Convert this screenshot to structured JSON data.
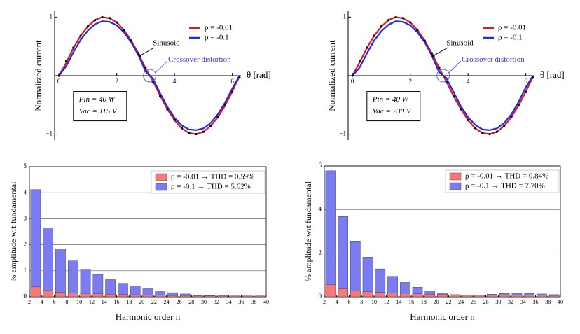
{
  "chart_data": [
    {
      "type": "line",
      "ylabel": "Normalized current",
      "xlabel": "θ [rad]",
      "x": [
        0,
        0.25,
        0.5,
        0.75,
        1,
        1.25,
        1.5,
        1.75,
        2,
        2.25,
        2.5,
        2.75,
        3,
        3.25,
        3.5,
        3.75,
        4,
        4.25,
        4.5,
        4.75,
        5,
        5.25,
        5.5,
        5.75,
        6,
        6.25
      ],
      "series": [
        {
          "name": "ρ = -0.01",
          "color": "#e8141c",
          "values": [
            0,
            0.22,
            0.47,
            0.68,
            0.84,
            0.95,
            1.0,
            0.98,
            0.91,
            0.78,
            0.6,
            0.38,
            0.12,
            -0.09,
            -0.34,
            -0.57,
            -0.76,
            -0.9,
            -0.98,
            -1.0,
            -0.96,
            -0.86,
            -0.71,
            -0.51,
            -0.27,
            -0.01
          ]
        },
        {
          "name": "ρ = -0.1",
          "color": "#1a2ee0",
          "values": [
            0,
            0.16,
            0.4,
            0.61,
            0.77,
            0.88,
            0.93,
            0.92,
            0.86,
            0.74,
            0.57,
            0.35,
            0.07,
            -0.05,
            -0.3,
            -0.53,
            -0.72,
            -0.85,
            -0.92,
            -0.93,
            -0.9,
            -0.81,
            -0.66,
            -0.46,
            -0.22,
            0
          ]
        }
      ],
      "sinusoid": {
        "color": "#000000",
        "values": [
          0,
          0.247,
          0.479,
          0.682,
          0.841,
          0.949,
          0.997,
          0.984,
          0.909,
          0.778,
          0.598,
          0.382,
          0.141,
          -0.108,
          -0.351,
          -0.572,
          -0.757,
          -0.895,
          -0.978,
          -0.999,
          -0.959,
          -0.859,
          -0.706,
          -0.508,
          -0.279,
          -0.033
        ]
      },
      "annotations": {
        "sinusoid": "Sinusoid",
        "crossover": "Crossover distortion",
        "pin": "Pin = 40 W",
        "vac": "Vac = 115 V"
      },
      "xlim": [
        -0.15,
        6.3
      ],
      "xticks": [
        0,
        2,
        4,
        6
      ],
      "ylim": [
        -1.1,
        1.1
      ],
      "yticks": [
        {
          "value": -1,
          "label": "−1"
        },
        1
      ],
      "grid": false
    },
    {
      "type": "line",
      "ylabel": "Normalized current",
      "xlabel": "θ [rad]",
      "x": [
        0,
        0.25,
        0.5,
        0.75,
        1,
        1.25,
        1.5,
        1.75,
        2,
        2.25,
        2.5,
        2.75,
        3,
        3.25,
        3.5,
        3.75,
        4,
        4.25,
        4.5,
        4.75,
        5,
        5.25,
        5.5,
        5.75,
        6,
        6.25
      ],
      "series": [
        {
          "name": "ρ = -0.01",
          "color": "#e8141c",
          "values": [
            0,
            0.23,
            0.47,
            0.68,
            0.84,
            0.95,
            1.0,
            0.98,
            0.91,
            0.78,
            0.6,
            0.38,
            0.13,
            -0.1,
            -0.35,
            -0.57,
            -0.76,
            -0.9,
            -0.98,
            -1.0,
            -0.96,
            -0.86,
            -0.71,
            -0.51,
            -0.27,
            -0.02
          ]
        },
        {
          "name": "ρ = -0.1",
          "color": "#1a2ee0",
          "values": [
            0,
            0.14,
            0.38,
            0.6,
            0.76,
            0.87,
            0.93,
            0.92,
            0.86,
            0.74,
            0.57,
            0.34,
            0.06,
            -0.04,
            -0.28,
            -0.52,
            -0.71,
            -0.84,
            -0.92,
            -0.93,
            -0.9,
            -0.81,
            -0.66,
            -0.45,
            -0.2,
            0
          ]
        }
      ],
      "sinusoid": {
        "color": "#000000",
        "values": [
          0,
          0.247,
          0.479,
          0.682,
          0.841,
          0.949,
          0.997,
          0.984,
          0.909,
          0.778,
          0.598,
          0.382,
          0.141,
          -0.108,
          -0.351,
          -0.572,
          -0.757,
          -0.895,
          -0.978,
          -0.999,
          -0.959,
          -0.859,
          -0.706,
          -0.508,
          -0.279,
          -0.033
        ]
      },
      "annotations": {
        "sinusoid": "Sinusoid",
        "crossover": "Crossover distortion",
        "pin": "Pin = 40 W",
        "vac": "Vac = 230 V"
      },
      "xlim": [
        -0.15,
        6.3
      ],
      "xticks": [
        0,
        2,
        4,
        6
      ],
      "ylim": [
        -1.1,
        1.1
      ],
      "yticks": [
        {
          "value": -1,
          "label": "−1"
        },
        1
      ],
      "grid": false
    },
    {
      "type": "bar",
      "ylabel": "% amplitude wrt fundamental",
      "xlabel": "Harmonic order n",
      "x": [
        3,
        5,
        7,
        9,
        11,
        13,
        15,
        17,
        19,
        21,
        23,
        25,
        27,
        29,
        31,
        33,
        35,
        37,
        39
      ],
      "series": [
        {
          "name": "ρ = -0.1  → THD = 5.62%",
          "color": "#7b7bf2",
          "values": [
            4.12,
            2.62,
            1.84,
            1.38,
            1.06,
            0.85,
            0.66,
            0.52,
            0.42,
            0.31,
            0.22,
            0.16,
            0.11,
            0.07,
            0.05,
            0.04,
            0.03,
            0.03,
            0.03
          ]
        },
        {
          "name": "ρ = -0.01 → THD = 0.59%",
          "color": "#f47a7a",
          "values": [
            0.38,
            0.24,
            0.18,
            0.15,
            0.13,
            0.12,
            0.1,
            0.09,
            0.08,
            0.07,
            0.06,
            0.05,
            0.05,
            0.04,
            0.04,
            0.03,
            0.03,
            0.03,
            0.03
          ]
        }
      ],
      "xlim": [
        2,
        40
      ],
      "xticks": [
        2,
        4,
        6,
        8,
        10,
        12,
        14,
        16,
        18,
        20,
        22,
        24,
        26,
        28,
        30,
        32,
        34,
        36,
        38,
        40
      ],
      "ylim": [
        0,
        5
      ],
      "yticks": [
        0,
        1,
        2,
        3,
        4,
        5
      ],
      "grid": true
    },
    {
      "type": "bar",
      "ylabel": "% amplitude wrt fundamental",
      "xlabel": "Harmonic order n",
      "x": [
        3,
        5,
        7,
        9,
        11,
        13,
        15,
        17,
        19,
        21,
        23,
        25,
        27,
        29,
        31,
        33,
        35,
        37,
        39
      ],
      "series": [
        {
          "name": "ρ = -0.1  → THD = 7.70%",
          "color": "#7b7bf2",
          "values": [
            5.78,
            3.68,
            2.56,
            1.82,
            1.28,
            0.94,
            0.66,
            0.44,
            0.28,
            0.17,
            0.1,
            0.07,
            0.08,
            0.12,
            0.15,
            0.16,
            0.15,
            0.13,
            0.1
          ]
        },
        {
          "name": "ρ = -0.01 → THD = 0.84%",
          "color": "#f47a7a",
          "values": [
            0.55,
            0.37,
            0.28,
            0.23,
            0.2,
            0.18,
            0.16,
            0.14,
            0.12,
            0.1,
            0.09,
            0.08,
            0.08,
            0.08,
            0.08,
            0.08,
            0.07,
            0.07,
            0.06
          ]
        }
      ],
      "xlim": [
        2,
        40
      ],
      "xticks": [
        2,
        4,
        6,
        8,
        10,
        12,
        14,
        16,
        18,
        20,
        22,
        24,
        26,
        28,
        30,
        32,
        34,
        36,
        38,
        40
      ],
      "ylim": [
        0,
        6
      ],
      "yticks": [
        0,
        2,
        4,
        6
      ],
      "grid": true
    }
  ]
}
